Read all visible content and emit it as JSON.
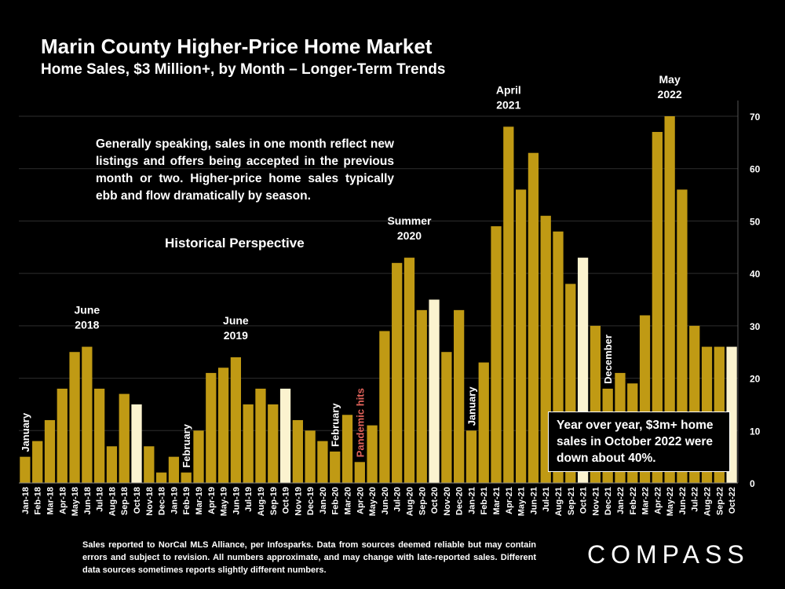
{
  "title": "Marin County Higher-Price Home Market",
  "subtitle": "Home Sales, $3 Million+, by Month – Longer-Term Trends",
  "note": "Generally speaking, sales in one month reflect new listings and offers being accepted in the previous month or two. Higher-price home sales typically ebb and flow dramatically by season.",
  "historical_label": "Historical Perspective",
  "yoy_note": "Year over year, $3m+ home sales in October 2022 were down about 40%.",
  "footer": "Sales reported to NorCal MLS Alliance, per Infosparks. Data from sources deemed reliable but may contain errors and subject to revision. All numbers approximate, and may change with late-reported sales. Different data sources sometimes reports slightly different numbers.",
  "logo": "COMPASS",
  "colors": {
    "bar": "#c09a14",
    "highlight": "#fbf3cf",
    "grid": "#2e2e2e",
    "annotation_red": "#e0625a"
  },
  "chart_data": {
    "type": "bar",
    "title": "Marin County Higher-Price Home Market",
    "subtitle": "Home Sales, $3 Million+, by Month – Longer-Term Trends",
    "xlabel": "",
    "ylabel": "",
    "ylim": [
      0,
      70
    ],
    "yticks": [
      0,
      10,
      20,
      30,
      40,
      50,
      60,
      70
    ],
    "y_axis_side": "right",
    "categories": [
      "Jan-18",
      "Feb-18",
      "Mar-18",
      "Apr-18",
      "May-18",
      "Jun-18",
      "Jul-18",
      "Aug-18",
      "Sep-18",
      "Oct-18",
      "Nov-18",
      "Dec-18",
      "Jan-19",
      "Feb-19",
      "Mar-19",
      "Apr-19",
      "May-19",
      "Jun-19",
      "Jul-19",
      "Aug-19",
      "Sep-19",
      "Oct-19",
      "Nov-19",
      "Dec-19",
      "Jan-20",
      "Feb-20",
      "Mar-20",
      "Apr-20",
      "May-20",
      "Jun-20",
      "Jul-20",
      "Aug-20",
      "Sep-20",
      "Oct-20",
      "Nov-20",
      "Dec-20",
      "Jan-21",
      "Feb-21",
      "Mar-21",
      "Apr-21",
      "May-21",
      "Jun-21",
      "Jul-21",
      "Aug-21",
      "Sep-21",
      "Oct-21",
      "Nov-21",
      "Dec-21",
      "Jan-22",
      "Feb-22",
      "Mar-22",
      "Apr-22",
      "May-22",
      "Jun-22",
      "Jul-22",
      "Aug-22",
      "Sep-22",
      "Oct-22"
    ],
    "values": [
      5,
      8,
      12,
      18,
      25,
      26,
      18,
      7,
      17,
      15,
      7,
      2,
      5,
      2,
      10,
      21,
      22,
      24,
      15,
      18,
      15,
      18,
      12,
      10,
      8,
      6,
      13,
      4,
      11,
      29,
      42,
      43,
      33,
      35,
      25,
      33,
      10,
      23,
      49,
      68,
      56,
      63,
      51,
      48,
      38,
      43,
      30,
      18,
      21,
      19,
      32,
      67,
      70,
      56,
      30,
      26,
      26,
      26
    ],
    "highlighted": [
      "Oct-18",
      "Oct-19",
      "Oct-20",
      "Oct-21",
      "Oct-22"
    ],
    "annotations": [
      {
        "label": "January",
        "at": "Jan-18",
        "orientation": "vertical",
        "color": "white"
      },
      {
        "label": "June 2018",
        "at": "Jun-18",
        "orientation": "horizontal",
        "color": "white"
      },
      {
        "label": "February",
        "at": "Feb-19",
        "orientation": "vertical",
        "color": "white"
      },
      {
        "label": "June 2019",
        "at": "Jun-19",
        "orientation": "horizontal",
        "color": "white"
      },
      {
        "label": "February",
        "at": "Feb-20",
        "orientation": "vertical",
        "color": "white"
      },
      {
        "label": "Pandemic hits",
        "at": "Apr-20",
        "orientation": "vertical",
        "color": "red"
      },
      {
        "label": "Summer 2020",
        "at": "Aug-20",
        "orientation": "horizontal",
        "color": "white"
      },
      {
        "label": "January",
        "at": "Jan-21",
        "orientation": "vertical",
        "color": "white"
      },
      {
        "label": "April 2021",
        "at": "Apr-21",
        "orientation": "horizontal",
        "color": "white"
      },
      {
        "label": "December",
        "at": "Dec-21",
        "orientation": "vertical",
        "color": "white"
      },
      {
        "label": "May 2022",
        "at": "May-22",
        "orientation": "horizontal",
        "color": "white"
      }
    ]
  }
}
